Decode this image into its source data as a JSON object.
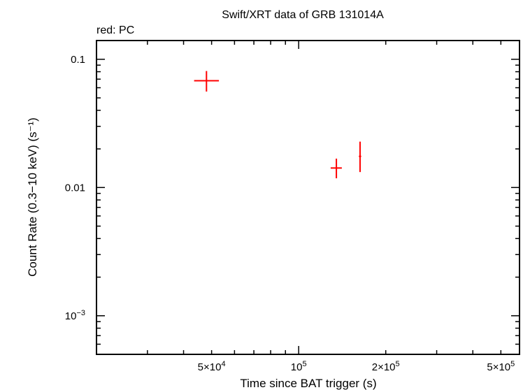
{
  "chart_data": {
    "type": "scatter",
    "title": "Swift/XRT data of GRB 131014A",
    "subtitle": "red: PC",
    "xlabel": "Time since BAT trigger (s)",
    "ylabel": "Count Rate (0.3−10 keV) (s⁻¹)",
    "xscale": "log",
    "yscale": "log",
    "xlim": [
      20000,
      580000
    ],
    "ylim": [
      0.0005,
      0.14
    ],
    "x_tick_labels": [
      {
        "value": 50000,
        "mantissa": "5×10",
        "exp": "4"
      },
      {
        "value": 100000,
        "mantissa": "10",
        "exp": "5"
      },
      {
        "value": 200000,
        "mantissa": "2×10",
        "exp": "5"
      },
      {
        "value": 500000,
        "mantissa": "5×10",
        "exp": "5"
      }
    ],
    "y_tick_labels": [
      {
        "value": 0.1,
        "mantissa": "0.1",
        "exp": ""
      },
      {
        "value": 0.01,
        "mantissa": "0.01",
        "exp": ""
      },
      {
        "value": 0.001,
        "mantissa": "10",
        "exp": "−3"
      }
    ],
    "grid": false,
    "series": [
      {
        "color": "#ff0000",
        "points": [
          {
            "x": 48000,
            "xlo": 43500,
            "xhi": 53000,
            "y": 0.068,
            "ylo": 0.056,
            "yhi": 0.081
          },
          {
            "x": 135000,
            "xlo": 129000,
            "xhi": 141000,
            "y": 0.0142,
            "ylo": 0.0118,
            "yhi": 0.0168
          },
          {
            "x": 163000,
            "xlo": 161500,
            "xhi": 164500,
            "y": 0.0175,
            "ylo": 0.0132,
            "yhi": 0.0228
          }
        ]
      }
    ]
  }
}
